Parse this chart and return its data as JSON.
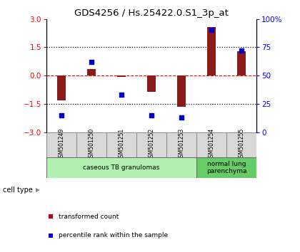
{
  "title": "GDS4256 / Hs.25422.0.S1_3p_at",
  "samples": [
    "GSM501249",
    "GSM501250",
    "GSM501251",
    "GSM501252",
    "GSM501253",
    "GSM501254",
    "GSM501255"
  ],
  "transformed_count": [
    -1.3,
    0.35,
    -0.05,
    -0.85,
    -1.65,
    2.55,
    1.3
  ],
  "percentile_rank": [
    15,
    62,
    33,
    15,
    13,
    90,
    72
  ],
  "ylim_left": [
    -3,
    3
  ],
  "ylim_right": [
    0,
    100
  ],
  "yticks_left": [
    -3,
    -1.5,
    0,
    1.5,
    3
  ],
  "yticks_right": [
    0,
    25,
    50,
    75,
    100
  ],
  "ytick_labels_right": [
    "0",
    "25",
    "50",
    "75",
    "100%"
  ],
  "hlines": [
    1.5,
    0,
    -1.5
  ],
  "hline_styles": [
    "dotted",
    "dashed",
    "dotted"
  ],
  "hline_colors": [
    "black",
    "red",
    "black"
  ],
  "bar_color": "#8B1A1A",
  "dot_color": "#0000CD",
  "cell_type_groups": [
    {
      "label": "caseous TB granulomas",
      "start": 0,
      "end": 4,
      "color": "#b2f0b2"
    },
    {
      "label": "normal lung\nparenchyma",
      "start": 5,
      "end": 6,
      "color": "#66CC66"
    }
  ],
  "legend_items": [
    {
      "color": "#CC0000",
      "label": "transformed count"
    },
    {
      "color": "#0000CC",
      "label": "percentile rank within the sample"
    }
  ],
  "cell_type_label": "cell type",
  "sample_box_color": "#d8d8d8"
}
